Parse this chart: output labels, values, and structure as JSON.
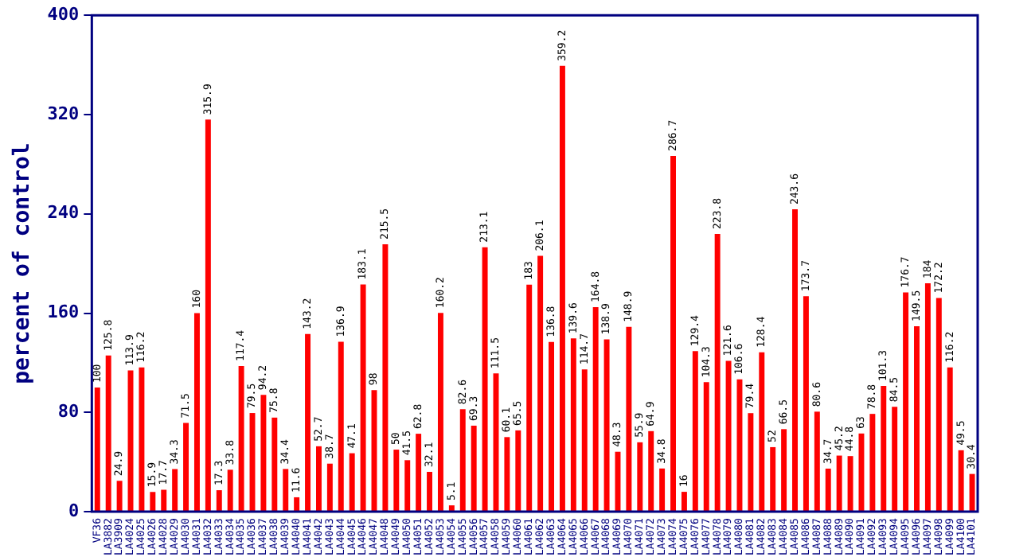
{
  "chart_data": {
    "type": "bar",
    "ylabel": "percent of control",
    "categories": [
      "VF36",
      "LA3882",
      "LA3909",
      "LA4024",
      "LA4025",
      "LA4026",
      "LA4028",
      "LA4029",
      "LA4030",
      "LA4031",
      "LA4032",
      "LA4033",
      "LA4034",
      "LA4035",
      "LA4036",
      "LA4037",
      "LA4038",
      "LA4039",
      "LA4040",
      "LA4041",
      "LA4042",
      "LA4043",
      "LA4044",
      "LA4045",
      "LA4046",
      "LA4047",
      "LA4048",
      "LA4049",
      "LA4050",
      "LA4051",
      "LA4052",
      "LA4053",
      "LA4054",
      "LA4055",
      "LA4056",
      "LA4057",
      "LA4058",
      "LA4059",
      "LA4060",
      "LA4061",
      "LA4062",
      "LA4063",
      "LA4064",
      "LA4065",
      "LA4066",
      "LA4067",
      "LA4068",
      "LA4069",
      "LA4070",
      "LA4071",
      "LA4072",
      "LA4073",
      "LA4074",
      "LA4075",
      "LA4076",
      "LA4077",
      "LA4078",
      "LA4079",
      "LA4080",
      "LA4081",
      "LA4082",
      "LA4083",
      "LA4084",
      "LA4085",
      "LA4086",
      "LA4087",
      "LA4088",
      "LA4089",
      "LA4090",
      "LA4091",
      "LA4092",
      "LA4093",
      "LA4094",
      "LA4095",
      "LA4096",
      "LA4097",
      "LA4098",
      "LA4099",
      "LA4100",
      "LA4101"
    ],
    "values": [
      100,
      125.8,
      24.9,
      113.9,
      116.2,
      15.9,
      17.7,
      34.3,
      71.5,
      160,
      315.9,
      17.3,
      33.8,
      117.4,
      79.5,
      94.2,
      75.8,
      34.4,
      11.6,
      143.2,
      52.7,
      38.7,
      136.9,
      47.1,
      183.1,
      98,
      215.5,
      50,
      41.5,
      62.8,
      32.1,
      160.2,
      5.1,
      82.6,
      69.3,
      213.1,
      111.5,
      60.1,
      65.5,
      183,
      206.1,
      136.8,
      359.2,
      139.6,
      114.7,
      164.8,
      138.9,
      48.3,
      148.9,
      55.9,
      64.9,
      34.8,
      286.7,
      16,
      129.4,
      104.3,
      223.8,
      121.6,
      106.6,
      79.4,
      128.4,
      52,
      66.5,
      243.6,
      173.7,
      80.6,
      34.7,
      45.2,
      44.8,
      63,
      78.8,
      101.3,
      84.5,
      176.7,
      149.5,
      184,
      172.2,
      116.2,
      49.5,
      30.4
    ],
    "color": "#ff0000",
    "ylim": [
      0,
      400
    ],
    "yticks": [
      0,
      80,
      160,
      240,
      320,
      400
    ],
    "grid": false,
    "data_labels": true
  }
}
